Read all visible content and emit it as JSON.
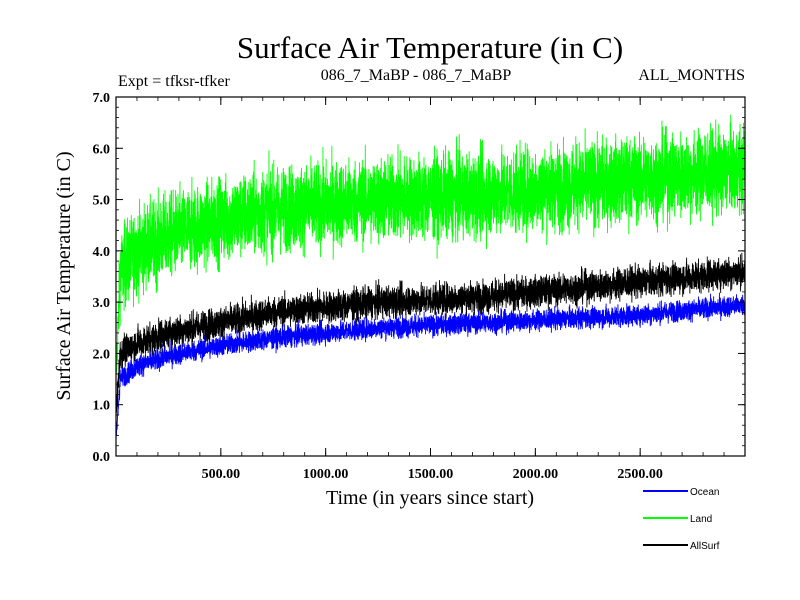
{
  "chart_data": {
    "type": "line",
    "title": "Surface Air Temperature (in C)",
    "subtitle_left": "Expt = tfksr-tfker",
    "subtitle_center": "086_7_MaBP - 086_7_MaBP",
    "subtitle_right": "ALL_MONTHS",
    "xlabel": "Time (in years since start)",
    "ylabel": "Surface Air Temperature (in C)",
    "xlim": [
      0,
      3000
    ],
    "ylim": [
      0,
      7
    ],
    "x_ticks": [
      500,
      1000,
      1500,
      2000,
      2500
    ],
    "x_tick_labels": [
      "500.00",
      "1000.00",
      "1500.00",
      "2000.00",
      "2500.00"
    ],
    "y_ticks": [
      0,
      1,
      2,
      3,
      4,
      5,
      6,
      7
    ],
    "y_tick_labels": [
      "0.0",
      "1.0",
      "2.0",
      "3.0",
      "4.0",
      "5.0",
      "6.0",
      "7.0"
    ],
    "legend_position": "bottom-right, outside plot",
    "series": [
      {
        "name": "Land",
        "color": "#00ff00",
        "x": [
          0,
          20,
          100,
          250,
          500,
          750,
          1000,
          1250,
          1500,
          1750,
          2000,
          2250,
          2500,
          2750,
          3000
        ],
        "mean": [
          1.5,
          3.6,
          4.0,
          4.3,
          4.6,
          4.8,
          4.9,
          5.0,
          5.05,
          5.1,
          5.2,
          5.3,
          5.4,
          5.5,
          5.6
        ],
        "spread": [
          0.4,
          0.8,
          0.8,
          0.8,
          0.8,
          0.8,
          0.8,
          0.8,
          0.8,
          0.8,
          0.8,
          0.8,
          0.8,
          0.8,
          0.8
        ]
      },
      {
        "name": "AllSurf",
        "color": "#000000",
        "x": [
          0,
          20,
          100,
          250,
          500,
          750,
          1000,
          1250,
          1500,
          1750,
          2000,
          2250,
          2500,
          2750,
          3000
        ],
        "mean": [
          0.8,
          2.0,
          2.2,
          2.4,
          2.6,
          2.8,
          2.9,
          3.0,
          3.05,
          3.1,
          3.2,
          3.3,
          3.4,
          3.5,
          3.6
        ],
        "spread": [
          0.3,
          0.3,
          0.3,
          0.3,
          0.3,
          0.3,
          0.3,
          0.3,
          0.3,
          0.3,
          0.3,
          0.3,
          0.3,
          0.3,
          0.3
        ]
      },
      {
        "name": "Ocean",
        "color": "#0000ff",
        "x": [
          0,
          20,
          100,
          250,
          500,
          750,
          1000,
          1250,
          1500,
          1750,
          2000,
          2250,
          2500,
          2750,
          3000
        ],
        "mean": [
          0.3,
          1.5,
          1.75,
          1.95,
          2.15,
          2.3,
          2.4,
          2.5,
          2.55,
          2.6,
          2.65,
          2.7,
          2.75,
          2.85,
          2.95
        ],
        "spread": [
          0.2,
          0.2,
          0.2,
          0.2,
          0.2,
          0.2,
          0.2,
          0.2,
          0.2,
          0.2,
          0.2,
          0.2,
          0.2,
          0.2,
          0.2
        ]
      }
    ]
  }
}
